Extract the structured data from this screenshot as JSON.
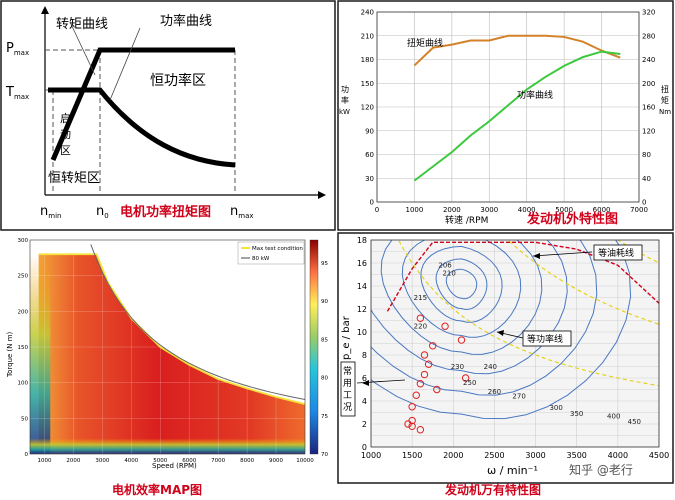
{
  "chart_data": [
    {
      "type": "line",
      "labels": {
        "torque_curve": "转矩曲线",
        "power_curve": "功率曲线",
        "pmax": "P",
        "pmax_sub": "max",
        "tmax": "T",
        "tmax_sub": "max",
        "const_power_region": "恒功率区",
        "start_region": [
          "启",
          "动",
          "区"
        ],
        "const_torque_region": "恒转矩区",
        "x_ticks": [
          {
            "main": "n",
            "sub": "min"
          },
          {
            "main": "n",
            "sub": "0"
          },
          {
            "main": "n",
            "sub": "max"
          }
        ]
      },
      "caption": "电机功率扭矩图"
    },
    {
      "type": "line",
      "x": [
        1000,
        1500,
        2000,
        2500,
        3000,
        3500,
        4000,
        4500,
        5000,
        5500,
        6000,
        6500
      ],
      "series": [
        {
          "name": "扭矩曲线",
          "axis": "right",
          "color": "#d4822a",
          "values": [
            230,
            260,
            265,
            272,
            272,
            280,
            280,
            280,
            278,
            270,
            255,
            243
          ]
        },
        {
          "name": "功率曲线",
          "axis": "left",
          "color": "#3dc83d",
          "values": [
            27,
            45,
            63,
            84,
            102,
            122,
            142,
            158,
            172,
            183,
            190,
            187
          ]
        }
      ],
      "xlabel": "转速 /RPM",
      "ylabel_left": [
        "功",
        "率",
        "kW"
      ],
      "ylabel_right": [
        "扭",
        "矩",
        "Nm"
      ],
      "xlim": [
        0,
        7000
      ],
      "ylim_left": [
        0,
        240
      ],
      "ylim_right": [
        0,
        320
      ],
      "x_ticks": [
        0,
        1000,
        2000,
        3000,
        4000,
        5000,
        6000,
        7000
      ],
      "y_ticks_left": [
        0,
        30,
        60,
        90,
        120,
        150,
        180,
        210,
        240
      ],
      "y_ticks_right": [
        0,
        40,
        80,
        120,
        160,
        200,
        240,
        280,
        320
      ],
      "caption": "发动机外特性图",
      "grid": true
    },
    {
      "type": "heatmap",
      "xlabel": "Speed (RPM)",
      "ylabel": "Torque (N m)",
      "xlim": [
        500,
        10000
      ],
      "ylim": [
        0,
        300
      ],
      "x_ticks": [
        "1000",
        "2000",
        "3000",
        "4000",
        "5000",
        "6000",
        "7000",
        "8000",
        "9000",
        "10000"
      ],
      "y_ticks": [
        "0",
        "50",
        "100",
        "150",
        "200",
        "250",
        "300"
      ],
      "colorbar_ticks": [
        "70",
        "75",
        "80",
        "85",
        "90",
        "95"
      ],
      "colorbar_range": [
        70,
        98
      ],
      "legend": [
        "Max test condition",
        "80 kW"
      ],
      "legend_colors": [
        "#f5e33a",
        "#666666"
      ],
      "max_torque_curve": {
        "x": [
          800,
          2800,
          3200,
          4000,
          5000,
          6000,
          7000,
          8000,
          9000,
          10000
        ],
        "y": [
          280,
          280,
          240,
          190,
          150,
          125,
          105,
          92,
          80,
          70
        ]
      },
      "caption": "电机效率MAP图",
      "grid": true
    },
    {
      "type": "line",
      "xlabel": "ω / min⁻¹",
      "ylabel": "p_e / bar",
      "xlim": [
        1000,
        4500
      ],
      "ylim": [
        0,
        18
      ],
      "x_ticks": [
        1000,
        1500,
        2000,
        2500,
        3000,
        3500,
        4000,
        4500
      ],
      "y_ticks": [
        0,
        2,
        4,
        6,
        8,
        10,
        12,
        14,
        16,
        18
      ],
      "bsfc_labels": [
        {
          "text": "206",
          "x": 1900,
          "y": 15.6
        },
        {
          "text": "210",
          "x": 1950,
          "y": 14.9
        },
        {
          "text": "215",
          "x": 1600,
          "y": 12.8
        },
        {
          "text": "220",
          "x": 1600,
          "y": 10.3
        },
        {
          "text": "230",
          "x": 2050,
          "y": 6.8
        },
        {
          "text": "240",
          "x": 2450,
          "y": 6.8
        },
        {
          "text": "250",
          "x": 2200,
          "y": 5.4
        },
        {
          "text": "260",
          "x": 2500,
          "y": 4.6
        },
        {
          "text": "270",
          "x": 2800,
          "y": 4.2
        },
        {
          "text": "300",
          "x": 3250,
          "y": 3.2
        },
        {
          "text": "350",
          "x": 3500,
          "y": 2.7
        },
        {
          "text": "400",
          "x": 3950,
          "y": 2.5
        },
        {
          "text": "450",
          "x": 4200,
          "y": 2.0
        }
      ],
      "annotations": {
        "iso_fuel": "等油耗线",
        "iso_power": "等功率线",
        "common_condition": [
          "常",
          "用",
          "工",
          "况"
        ]
      },
      "full_load": {
        "x": [
          1200,
          1500,
          1750,
          2000,
          2500,
          3000,
          3500,
          4000,
          4500
        ],
        "y": [
          11.8,
          15.5,
          17.8,
          17.8,
          17.8,
          17.8,
          17.2,
          15.8,
          12.5
        ]
      },
      "operating_points": [
        {
          "x": 1500,
          "y": 1.8
        },
        {
          "x": 1450,
          "y": 2.0
        },
        {
          "x": 1500,
          "y": 2.3
        },
        {
          "x": 1600,
          "y": 1.5
        },
        {
          "x": 1500,
          "y": 3.5
        },
        {
          "x": 1550,
          "y": 4.5
        },
        {
          "x": 1600,
          "y": 5.5
        },
        {
          "x": 1650,
          "y": 6.3
        },
        {
          "x": 1700,
          "y": 7.2
        },
        {
          "x": 1650,
          "y": 8.0
        },
        {
          "x": 1750,
          "y": 8.8
        },
        {
          "x": 1900,
          "y": 10.5
        },
        {
          "x": 2100,
          "y": 9.3
        },
        {
          "x": 2150,
          "y": 6.0
        },
        {
          "x": 1800,
          "y": 5.0
        },
        {
          "x": 1600,
          "y": 11.2
        }
      ],
      "watermark": "知乎 @老行",
      "caption": "发动机万有特性图",
      "grid": true
    }
  ]
}
